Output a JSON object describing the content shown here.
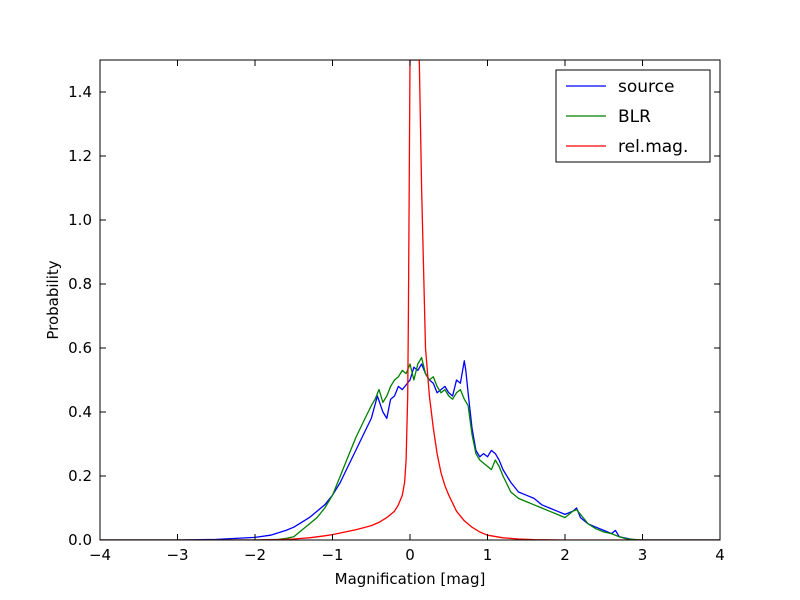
{
  "chart_data": {
    "type": "line",
    "xlabel": "Magnification [mag]",
    "ylabel": "Probability",
    "xlim": [
      -4,
      4
    ],
    "ylim": [
      0,
      1.5
    ],
    "xticks": [
      "−4",
      "−3",
      "−2",
      "−1",
      "0",
      "1",
      "2",
      "3",
      "4"
    ],
    "yticks": [
      "0.0",
      "0.2",
      "0.4",
      "0.6",
      "0.8",
      "1.0",
      "1.2",
      "1.4"
    ],
    "legend_position": "top-right",
    "series": [
      {
        "name": "source",
        "color": "#0000ff",
        "x": [
          -4.0,
          -3.0,
          -2.5,
          -2.0,
          -1.8,
          -1.6,
          -1.5,
          -1.4,
          -1.3,
          -1.2,
          -1.1,
          -1.0,
          -0.9,
          -0.8,
          -0.7,
          -0.6,
          -0.5,
          -0.42,
          -0.35,
          -0.3,
          -0.25,
          -0.2,
          -0.15,
          -0.1,
          0.0,
          0.05,
          0.1,
          0.15,
          0.2,
          0.25,
          0.3,
          0.35,
          0.4,
          0.45,
          0.5,
          0.55,
          0.6,
          0.65,
          0.7,
          0.72,
          0.75,
          0.8,
          0.85,
          0.9,
          0.95,
          1.0,
          1.05,
          1.1,
          1.15,
          1.2,
          1.3,
          1.4,
          1.5,
          1.6,
          1.7,
          1.8,
          1.9,
          2.0,
          2.1,
          2.15,
          2.2,
          2.3,
          2.4,
          2.5,
          2.6,
          2.65,
          2.7,
          2.8,
          2.9,
          3.0,
          4.0
        ],
        "y": [
          0.0,
          0.0,
          0.002,
          0.008,
          0.015,
          0.03,
          0.04,
          0.055,
          0.07,
          0.09,
          0.11,
          0.14,
          0.18,
          0.23,
          0.28,
          0.33,
          0.38,
          0.45,
          0.4,
          0.38,
          0.44,
          0.45,
          0.48,
          0.47,
          0.5,
          0.54,
          0.53,
          0.55,
          0.52,
          0.5,
          0.49,
          0.46,
          0.47,
          0.48,
          0.46,
          0.45,
          0.5,
          0.49,
          0.56,
          0.53,
          0.46,
          0.35,
          0.28,
          0.26,
          0.27,
          0.26,
          0.28,
          0.27,
          0.25,
          0.22,
          0.18,
          0.15,
          0.14,
          0.13,
          0.11,
          0.1,
          0.09,
          0.08,
          0.09,
          0.1,
          0.07,
          0.05,
          0.04,
          0.03,
          0.02,
          0.03,
          0.01,
          0.005,
          0.0,
          0.0,
          0.0
        ]
      },
      {
        "name": "BLR",
        "color": "#008000",
        "x": [
          -4.0,
          -2.0,
          -1.7,
          -1.6,
          -1.5,
          -1.4,
          -1.3,
          -1.2,
          -1.1,
          -1.0,
          -0.9,
          -0.8,
          -0.7,
          -0.6,
          -0.5,
          -0.45,
          -0.4,
          -0.35,
          -0.3,
          -0.25,
          -0.2,
          -0.15,
          -0.1,
          -0.05,
          0.0,
          0.05,
          0.1,
          0.15,
          0.2,
          0.25,
          0.3,
          0.35,
          0.4,
          0.45,
          0.5,
          0.55,
          0.6,
          0.65,
          0.7,
          0.75,
          0.8,
          0.85,
          0.9,
          0.95,
          1.0,
          1.05,
          1.1,
          1.15,
          1.2,
          1.3,
          1.4,
          1.5,
          1.6,
          1.7,
          1.8,
          1.9,
          2.0,
          2.1,
          2.15,
          2.2,
          2.3,
          2.4,
          2.5,
          2.6,
          2.7,
          2.8,
          3.0,
          4.0
        ],
        "y": [
          0.0,
          0.0,
          0.002,
          0.005,
          0.01,
          0.03,
          0.05,
          0.07,
          0.1,
          0.14,
          0.2,
          0.26,
          0.32,
          0.37,
          0.42,
          0.44,
          0.47,
          0.43,
          0.45,
          0.48,
          0.5,
          0.51,
          0.53,
          0.52,
          0.55,
          0.5,
          0.55,
          0.57,
          0.52,
          0.5,
          0.51,
          0.48,
          0.46,
          0.47,
          0.45,
          0.44,
          0.46,
          0.47,
          0.44,
          0.42,
          0.33,
          0.27,
          0.25,
          0.24,
          0.23,
          0.22,
          0.25,
          0.23,
          0.2,
          0.15,
          0.13,
          0.12,
          0.11,
          0.1,
          0.09,
          0.08,
          0.07,
          0.09,
          0.095,
          0.08,
          0.05,
          0.035,
          0.025,
          0.02,
          0.01,
          0.003,
          0.0,
          0.0
        ]
      },
      {
        "name": "rel.mag.",
        "color": "#ff0000",
        "x": [
          -4.0,
          -2.0,
          -1.7,
          -1.6,
          -1.5,
          -1.4,
          -1.3,
          -1.2,
          -1.1,
          -1.0,
          -0.9,
          -0.8,
          -0.7,
          -0.6,
          -0.5,
          -0.4,
          -0.3,
          -0.2,
          -0.15,
          -0.1,
          -0.07,
          -0.05,
          -0.03,
          -0.02,
          -0.01,
          0.0,
          0.01,
          0.02,
          0.03,
          0.035,
          0.045,
          0.05,
          0.06,
          0.08,
          0.1,
          0.12,
          0.15,
          0.2,
          0.25,
          0.3,
          0.35,
          0.4,
          0.45,
          0.5,
          0.6,
          0.7,
          0.8,
          0.9,
          1.0,
          1.2,
          1.4,
          1.6,
          2.0,
          4.0
        ],
        "y": [
          0.0,
          0.0,
          0.001,
          0.002,
          0.003,
          0.005,
          0.007,
          0.01,
          0.013,
          0.017,
          0.022,
          0.027,
          0.032,
          0.038,
          0.045,
          0.055,
          0.07,
          0.09,
          0.11,
          0.14,
          0.18,
          0.25,
          0.45,
          0.7,
          1.1,
          1.5,
          1.5,
          1.5,
          1.5,
          1.5,
          1.5,
          1.5,
          1.5,
          1.5,
          1.5,
          1.5,
          1.1,
          0.6,
          0.45,
          0.35,
          0.27,
          0.21,
          0.17,
          0.14,
          0.09,
          0.06,
          0.04,
          0.025,
          0.015,
          0.007,
          0.003,
          0.001,
          0.0,
          0.0
        ]
      }
    ]
  }
}
